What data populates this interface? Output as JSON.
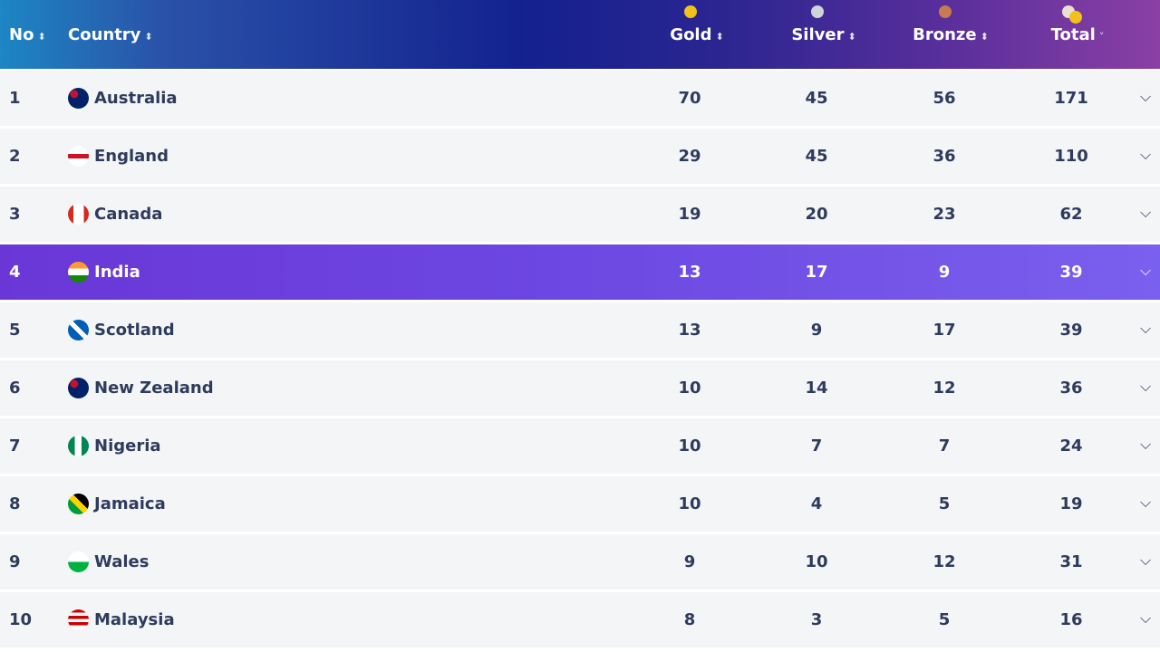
{
  "table": {
    "columns": [
      "No",
      "Country",
      "Gold",
      "Silver",
      "Bronze",
      "Total"
    ],
    "rows": [
      [
        1,
        "Australia",
        70,
        45,
        56,
        171
      ],
      [
        2,
        "England",
        29,
        45,
        36,
        110
      ],
      [
        3,
        "Canada",
        19,
        20,
        23,
        62
      ],
      [
        4,
        "India",
        13,
        17,
        9,
        39
      ],
      [
        5,
        "Scotland",
        13,
        9,
        17,
        39
      ],
      [
        6,
        "New Zealand",
        10,
        14,
        12,
        36
      ],
      [
        7,
        "Nigeria",
        10,
        7,
        7,
        24
      ],
      [
        8,
        "Jamaica",
        10,
        4,
        5,
        19
      ],
      [
        9,
        "Wales",
        9,
        10,
        12,
        31
      ],
      [
        10,
        "Malaysia",
        8,
        3,
        5,
        16
      ]
    ]
  }
}
